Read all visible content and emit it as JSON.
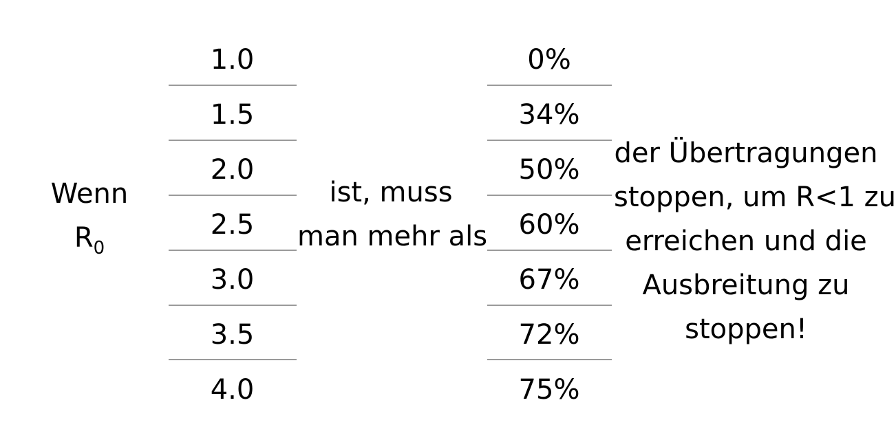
{
  "lead": {
    "word": "Wenn",
    "symbol": "R",
    "subscript": "0"
  },
  "middle": {
    "lines": [
      "ist, muss",
      "man mehr als"
    ]
  },
  "right": {
    "lines": [
      "der Übertragungen",
      "stoppen, um R<1 zu",
      "erreichen und die",
      "Ausbreitung zu",
      "stoppen!"
    ]
  },
  "r0_values": [
    "1.0",
    "1.5",
    "2.0",
    "2.5",
    "3.0",
    "3.5",
    "4.0"
  ],
  "percentages": [
    "0%",
    "34%",
    "50%",
    "60%",
    "67%",
    "72%",
    "75%"
  ]
}
